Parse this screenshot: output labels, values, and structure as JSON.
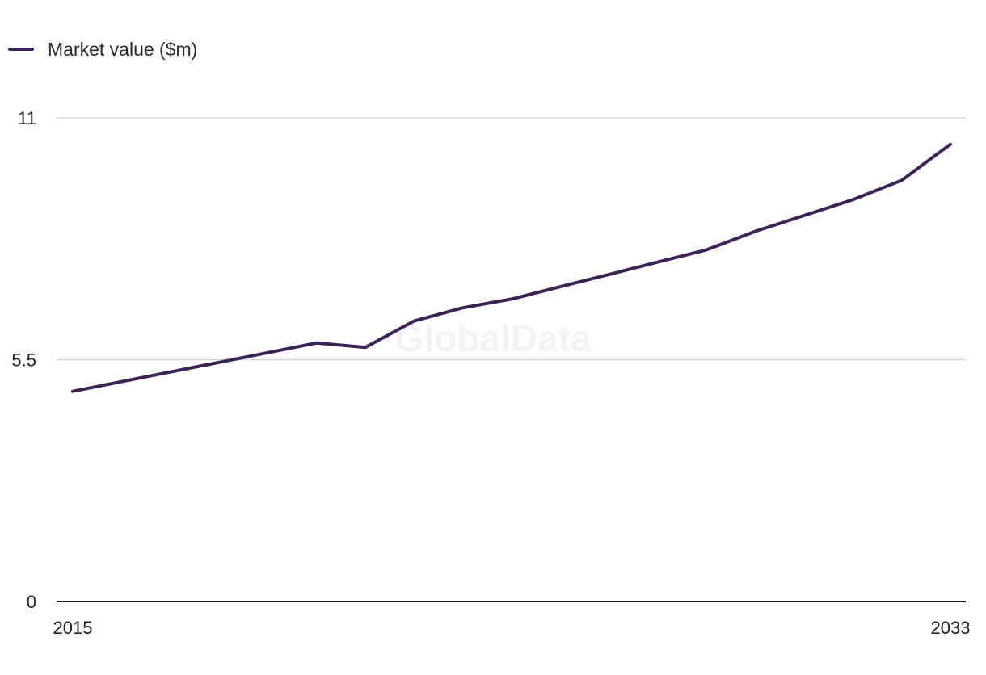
{
  "legend": {
    "label": "Market value ($m)",
    "color": "#3b2452"
  },
  "watermark": "GlobalData",
  "chart_data": {
    "type": "line",
    "x": [
      2015,
      2016,
      2017,
      2018,
      2019,
      2020,
      2021,
      2022,
      2023,
      2024,
      2025,
      2026,
      2027,
      2028,
      2029,
      2030,
      2031,
      2032,
      2033
    ],
    "series": [
      {
        "name": "Market value ($m)",
        "color": "#3b2452",
        "values": [
          4.78,
          5.0,
          5.22,
          5.44,
          5.66,
          5.88,
          5.78,
          6.38,
          6.68,
          6.88,
          7.16,
          7.44,
          7.72,
          8.0,
          8.42,
          8.78,
          9.14,
          9.58,
          10.4
        ]
      }
    ],
    "title": "",
    "xlabel": "",
    "ylabel": "",
    "ylim": [
      0,
      11
    ],
    "yticks": [
      "0",
      "5.5",
      "11"
    ],
    "xticks": [
      "2015",
      "2033"
    ],
    "grid": true,
    "legend_position": "top-left"
  }
}
